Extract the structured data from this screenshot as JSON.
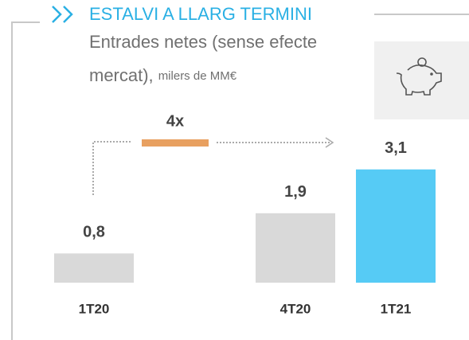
{
  "chart_data": {
    "type": "bar",
    "title": "ESTALVI A LLARG TERMINI",
    "subtitle": [
      "Entrades netes (sense efecte",
      "mercat),"
    ],
    "unit": "milers de MM€",
    "annotation": "4x",
    "categories": [
      "1T20",
      "4T20",
      "1T21"
    ],
    "values": [
      0.8,
      1.9,
      3.1
    ],
    "value_labels": [
      "0,8",
      "1,9",
      "3,1"
    ],
    "colors": [
      "#d9d9d9",
      "#d9d9d9",
      "#56cbf5"
    ],
    "ylim": [
      0,
      3.4
    ]
  }
}
